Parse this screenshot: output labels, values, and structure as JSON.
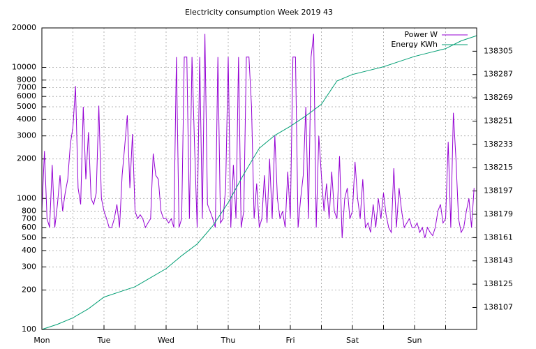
{
  "chart_data": {
    "type": "line",
    "title": "Electricity consumption Week 2019 43",
    "ylog": true,
    "grid": true,
    "legend": "top-right",
    "xlim": [
      0,
      168
    ],
    "xticks": [
      {
        "value": 0,
        "label": "Mon"
      },
      {
        "value": 12,
        "label": null
      },
      {
        "value": 24,
        "label": "Tue"
      },
      {
        "value": 36,
        "label": null
      },
      {
        "value": 48,
        "label": "Wed"
      },
      {
        "value": 60,
        "label": null
      },
      {
        "value": 72,
        "label": "Thu"
      },
      {
        "value": 84,
        "label": null
      },
      {
        "value": 96,
        "label": "Fri"
      },
      {
        "value": 108,
        "label": null
      },
      {
        "value": 120,
        "label": "Sat"
      },
      {
        "value": 132,
        "label": null
      },
      {
        "value": 144,
        "label": "Sun"
      },
      {
        "value": 156,
        "label": null
      }
    ],
    "ylim": [
      100,
      20000
    ],
    "yticks": [
      100,
      200,
      300,
      400,
      500,
      600,
      700,
      800,
      1000,
      2000,
      3000,
      4000,
      5000,
      6000,
      7000,
      8000,
      10000,
      20000
    ],
    "y2lim": [
      138090,
      138323
    ],
    "y2ticks": [
      138107,
      138125,
      138143,
      138161,
      138179,
      138197,
      138215,
      138233,
      138251,
      138269,
      138287,
      138305
    ],
    "series": [
      {
        "name": "Power W",
        "color": "#9400d3",
        "x": [
          0,
          1,
          2,
          3,
          4,
          5,
          6,
          7,
          8,
          9,
          10,
          11,
          12,
          13,
          14,
          15,
          16,
          17,
          18,
          19,
          20,
          21,
          22,
          23,
          24,
          25,
          26,
          27,
          28,
          29,
          30,
          31,
          32,
          33,
          34,
          35,
          36,
          37,
          38,
          39,
          40,
          41,
          42,
          43,
          44,
          45,
          46,
          47,
          48,
          49,
          50,
          51,
          52,
          53,
          54,
          55,
          56,
          57,
          58,
          59,
          60,
          61,
          62,
          63,
          64,
          65,
          66,
          67,
          68,
          69,
          70,
          71,
          72,
          73,
          74,
          75,
          76,
          77,
          78,
          79,
          80,
          81,
          82,
          83,
          84,
          85,
          86,
          87,
          88,
          89,
          90,
          91,
          92,
          93,
          94,
          95,
          96,
          97,
          98,
          99,
          100,
          101,
          102,
          103,
          104,
          105,
          106,
          107,
          108,
          109,
          110,
          111,
          112,
          113,
          114,
          115,
          116,
          117,
          118,
          119,
          120,
          121,
          122,
          123,
          124,
          125,
          126,
          127,
          128,
          129,
          130,
          131,
          132,
          133,
          134,
          135,
          136,
          137,
          138,
          139,
          140,
          141,
          142,
          143,
          144,
          145,
          146,
          147,
          148,
          149,
          150,
          151,
          152,
          153,
          154,
          155,
          156,
          157,
          158,
          159,
          160,
          161,
          162,
          163,
          164,
          165,
          166,
          167
        ],
        "values": [
          800,
          2300,
          700,
          600,
          1800,
          600,
          900,
          1500,
          800,
          1100,
          1400,
          2600,
          3500,
          7200,
          1200,
          900,
          5000,
          1400,
          3200,
          1000,
          900,
          1100,
          5100,
          1000,
          800,
          700,
          600,
          600,
          700,
          900,
          600,
          1500,
          2500,
          4300,
          1200,
          3100,
          800,
          700,
          750,
          700,
          600,
          650,
          700,
          2200,
          1500,
          1400,
          800,
          700,
          700,
          650,
          700,
          600,
          12000,
          600,
          700,
          12000,
          12000,
          700,
          12000,
          2500,
          600,
          12000,
          700,
          18000,
          900,
          800,
          700,
          600,
          12000,
          650,
          700,
          1200,
          12000,
          600,
          1800,
          700,
          12000,
          600,
          800,
          12000,
          12000,
          5000,
          700,
          1300,
          600,
          700,
          1500,
          650,
          2000,
          700,
          3000,
          1000,
          700,
          800,
          600,
          1600,
          700,
          12000,
          12000,
          600,
          1000,
          1500,
          5000,
          700,
          12000,
          18000,
          600,
          3000,
          1500,
          800,
          1300,
          700,
          1600,
          800,
          700,
          2100,
          500,
          1000,
          1200,
          700,
          800,
          1900,
          1000,
          700,
          1400,
          600,
          650,
          550,
          900,
          600,
          1000,
          700,
          1100,
          750,
          600,
          550,
          1700,
          600,
          1200,
          800,
          600,
          650,
          700,
          600,
          600,
          650,
          550,
          600,
          500,
          600,
          550,
          520,
          600,
          800,
          900,
          650,
          700,
          2700,
          600,
          4500,
          2000,
          700,
          550,
          600,
          800,
          1000,
          600,
          1200
        ]
      },
      {
        "name": "Energy KWh",
        "color": "#009e73",
        "axis": "y2",
        "x": [
          0,
          6,
          12,
          18,
          24,
          30,
          36,
          42,
          48,
          54,
          60,
          66,
          72,
          78,
          84,
          90,
          96,
          102,
          108,
          114,
          120,
          126,
          132,
          138,
          144,
          150,
          156,
          162,
          168
        ],
        "values": [
          138090,
          138094,
          138099,
          138106,
          138115,
          138119,
          138123,
          138130,
          138137,
          138147,
          138156,
          138170,
          138188,
          138210,
          138230,
          138240,
          138247,
          138255,
          138264,
          138282,
          138287,
          138290,
          138293,
          138297,
          138301,
          138304,
          138307,
          138313,
          138317
        ]
      }
    ]
  }
}
